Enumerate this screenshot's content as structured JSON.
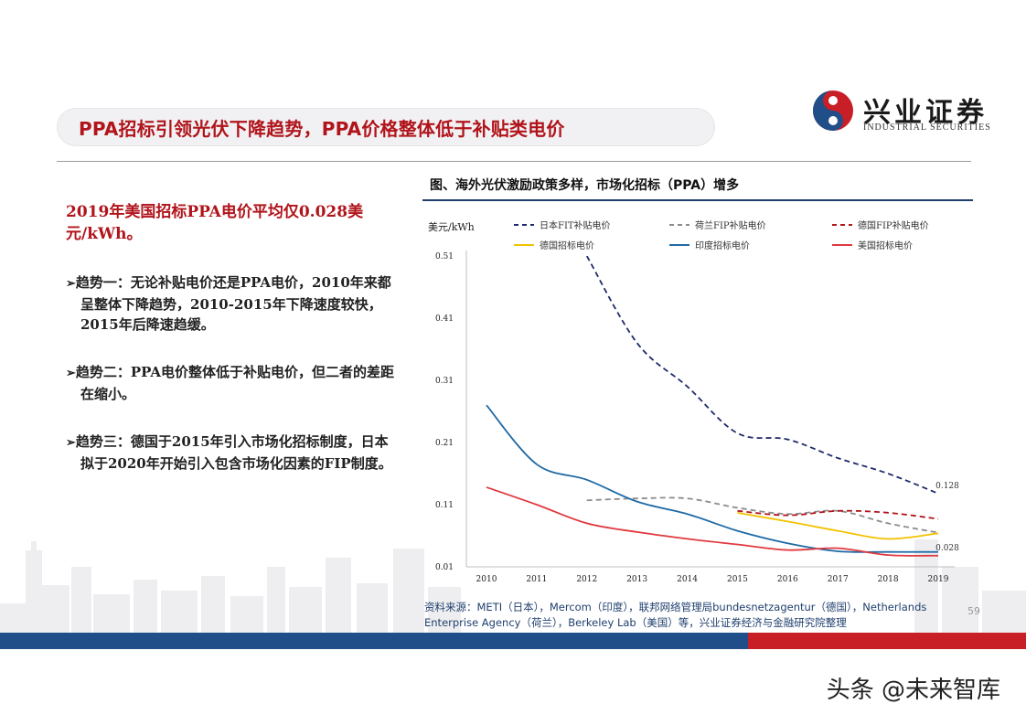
{
  "slide": {
    "title": "PPA招标引领光伏下降趋势，PPA价格整体低于补贴类电价",
    "page_number": "59"
  },
  "logo": {
    "name_cn": "兴业证券",
    "name_en": "INDUSTRIAL SECURITIES"
  },
  "left_panel": {
    "headline": "2019年美国招标PPA电价平均仅0.028美元/kWh。",
    "bullets": [
      "趋势一：无论补贴电价还是PPA电价，2010年来都呈整体下降趋势，2010-2015年下降速度较快，2015年后降速趋缓。",
      "趋势二：PPA电价整体低于补贴电价，但二者的差距在缩小。",
      "趋势三：德国于2015年引入市场化招标制度，日本拟于2020年开始引入包含市场化因素的FIP制度。"
    ]
  },
  "figure": {
    "title": "图、海外光伏激励政策多样，市场化招标（PPA）增多",
    "source": "资料来源：METI（日本），Mercom（印度），联邦网络管理局bundesnetzagentur（德国），Netherlands Enterprise Agency（荷兰），Berkeley Lab（美国）等，兴业证券经济与金融研究院整理"
  },
  "watermark": "头条 @未来智库",
  "chart_data": {
    "type": "line",
    "ylabel": "美元/kWh",
    "xlabel": "",
    "ylim": [
      0.01,
      0.51
    ],
    "yticks": [
      "0.51",
      "0.41",
      "0.31",
      "0.21",
      "0.11",
      "0.01"
    ],
    "x": [
      "2010",
      "2011",
      "2012",
      "2013",
      "2014",
      "2015",
      "2016",
      "2017",
      "2018",
      "2019"
    ],
    "legend_position": "top",
    "annotations": [
      {
        "text": "0.128",
        "x": "2019",
        "y": 0.128
      },
      {
        "text": "0.028",
        "x": "2019",
        "y": 0.028
      }
    ],
    "series": [
      {
        "name": "日本FIT补贴电价",
        "color": "#1f2a6b",
        "style": "dash",
        "values": [
          null,
          null,
          0.51,
          0.37,
          0.3,
          0.225,
          0.215,
          0.185,
          0.16,
          0.128
        ]
      },
      {
        "name": "荷兰FIP补贴电价",
        "color": "#8c8c8c",
        "style": "dash",
        "values": [
          null,
          null,
          0.117,
          0.12,
          0.12,
          0.105,
          0.095,
          0.1,
          0.08,
          0.065
        ]
      },
      {
        "name": "德国FIP补贴电价",
        "color": "#b1141b",
        "style": "dash",
        "values": [
          null,
          null,
          null,
          null,
          null,
          0.1,
          0.093,
          0.1,
          0.097,
          0.087
        ]
      },
      {
        "name": "德国招标电价",
        "color": "#f2c200",
        "style": "solid",
        "values": [
          null,
          null,
          null,
          null,
          null,
          0.097,
          0.083,
          0.068,
          0.055,
          0.064
        ]
      },
      {
        "name": "印度招标电价",
        "color": "#1f6aa5",
        "style": "solid",
        "values": [
          0.27,
          0.175,
          0.15,
          0.115,
          0.095,
          0.068,
          0.048,
          0.035,
          0.034,
          0.034
        ]
      },
      {
        "name": "美国招标电价",
        "color": "#e0393e",
        "style": "solid",
        "values": [
          0.138,
          0.11,
          0.08,
          0.066,
          0.055,
          0.046,
          0.037,
          0.04,
          0.029,
          0.028
        ]
      }
    ]
  }
}
